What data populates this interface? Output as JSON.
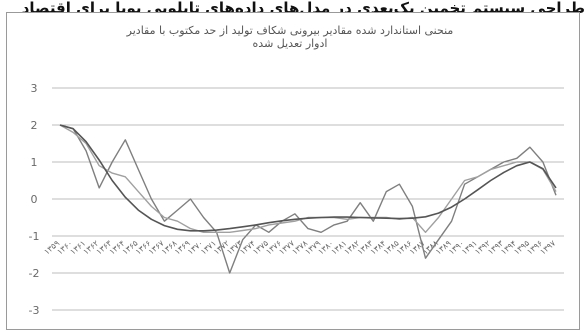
{
  "top_text": "طراحی سیستم تخمین یک‌بعدی در مدل‌های داده‌های تابلویی پویا برای اقتصاد",
  "chart_data": {
    "type": "line",
    "title": "منحنی استاندارد شده مقادیر بیرونی شکاف تولید از حد مکتوب با مقادیر ادوار تعدیل شده",
    "xlabel": "",
    "ylabel": "",
    "ylim": [
      -3,
      3
    ],
    "yticks": [
      3,
      2,
      1,
      0,
      -1,
      -2,
      -3
    ],
    "grid": true,
    "categories": [
      "۱۳۵۹",
      "۱۳۶۰",
      "۱۳۶۱",
      "۱۳۶۲",
      "۱۳۶۳",
      "۱۳۶۴",
      "۱۳۶۵",
      "۱۳۶۶",
      "۱۳۶۷",
      "۱۳۶۸",
      "۱۳۶۹",
      "۱۳۷۰",
      "۱۳۷۱",
      "۱۳۷۲",
      "۱۳۷۳",
      "۱۳۷۴",
      "۱۳۷۵",
      "۱۳۷۶",
      "۱۳۷۷",
      "۱۳۷۸",
      "۱۳۷۹",
      "۱۳۸۰",
      "۱۳۸۱",
      "۱۳۸۲",
      "۱۳۸۳",
      "۱۳۸۴",
      "۱۳۸۵",
      "۱۳۸۶",
      "۱۳۸۷",
      "۱۳۸۸",
      "۱۳۸۹",
      "۱۳۹۰",
      "۱۳۹۱",
      "۱۳۹۲",
      "۱۳۹۳",
      "۱۳۹۴",
      "۱۳۹۵",
      "۱۳۹۶",
      "۱۳۹۷"
    ],
    "series": [
      {
        "values": [
          2.0,
          1.9,
          1.3,
          0.3,
          1.0,
          1.6,
          0.8,
          0.0,
          -0.6,
          -0.3,
          0.0,
          -0.5,
          -0.9,
          -2.0,
          -1.1,
          -0.7,
          -0.9,
          -0.6,
          -0.4,
          -0.8,
          -0.9,
          -0.7,
          -0.6,
          -0.1,
          -0.6,
          0.2,
          0.4,
          -0.2,
          -1.6,
          -1.1,
          -0.6,
          0.4,
          0.6,
          0.8,
          1.0,
          1.1,
          1.4,
          1.0,
          0.1
        ],
        "color": "#7f7f7f"
      },
      {
        "values": [
          2.0,
          1.8,
          1.5,
          0.9,
          0.7,
          0.6,
          0.2,
          -0.2,
          -0.5,
          -0.6,
          -0.8,
          -0.9,
          -0.9,
          -0.9,
          -0.85,
          -0.8,
          -0.7,
          -0.65,
          -0.6,
          -0.5,
          -0.5,
          -0.5,
          -0.55,
          -0.5,
          -0.5,
          -0.5,
          -0.55,
          -0.5,
          -0.9,
          -0.5,
          0.0,
          0.5,
          0.6,
          0.8,
          0.9,
          1.0,
          1.0,
          0.8,
          0.2
        ],
        "color": "#a0a0a0"
      },
      {
        "values": [
          2.0,
          1.9,
          1.55,
          1.05,
          0.5,
          0.05,
          -0.3,
          -0.55,
          -0.72,
          -0.82,
          -0.86,
          -0.86,
          -0.84,
          -0.8,
          -0.75,
          -0.7,
          -0.64,
          -0.59,
          -0.55,
          -0.52,
          -0.5,
          -0.49,
          -0.49,
          -0.5,
          -0.51,
          -0.52,
          -0.53,
          -0.52,
          -0.48,
          -0.38,
          -0.22,
          0.0,
          0.25,
          0.5,
          0.72,
          0.9,
          1.0,
          0.82,
          0.3
        ],
        "color": "#555555"
      }
    ]
  }
}
